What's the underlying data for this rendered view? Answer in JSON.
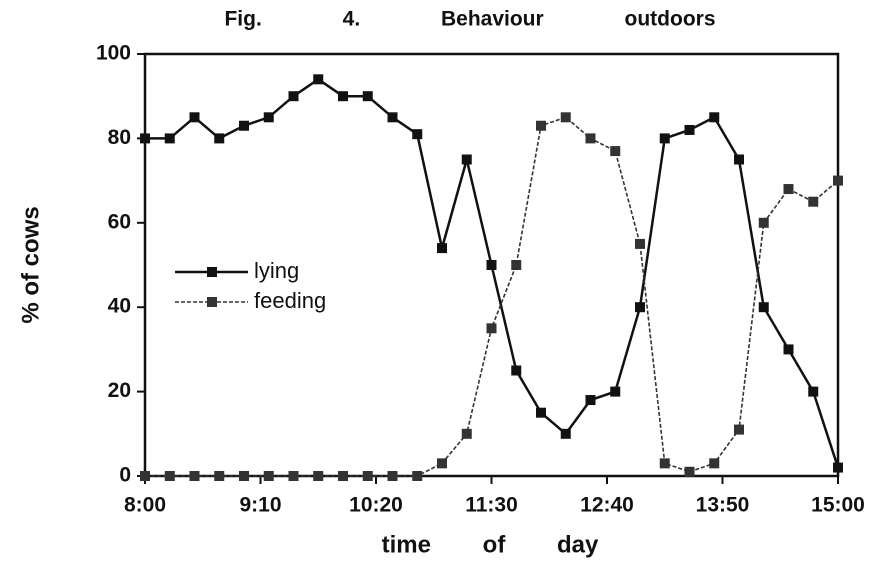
{
  "chart_data": {
    "type": "line",
    "title": "Fig. 4. Behaviour outdoors",
    "x_label": "time of day",
    "y_label": "% of cows",
    "x": [
      480,
      495,
      510,
      525,
      540,
      555,
      570,
      585,
      600,
      615,
      630,
      645,
      660,
      675,
      690,
      705,
      720,
      735,
      750,
      765,
      780,
      795,
      810,
      825,
      840,
      855,
      870,
      885,
      900
    ],
    "xlim": [
      480,
      900
    ],
    "xticks": [
      {
        "value": 480,
        "label": "8:00"
      },
      {
        "value": 550,
        "label": "9:10"
      },
      {
        "value": 620,
        "label": "10:20"
      },
      {
        "value": 690,
        "label": "11:30"
      },
      {
        "value": 760,
        "label": "12:40"
      },
      {
        "value": 830,
        "label": "13:50"
      },
      {
        "value": 900,
        "label": "15:00"
      }
    ],
    "ylim": [
      0,
      100
    ],
    "yticks": [
      0,
      20,
      40,
      60,
      80,
      100
    ],
    "legend": "left",
    "series": [
      {
        "name": "lying",
        "color": "#111111",
        "dash": false,
        "values": [
          80,
          80,
          85,
          80,
          83,
          85,
          90,
          94,
          90,
          90,
          85,
          81,
          54,
          75,
          50,
          25,
          15,
          10,
          18,
          20,
          40,
          80,
          82,
          85,
          75,
          40,
          30,
          20,
          2
        ]
      },
      {
        "name": "feeding",
        "color": "#333333",
        "dash": true,
        "values": [
          0,
          0,
          0,
          0,
          0,
          0,
          0,
          0,
          0,
          0,
          0,
          0,
          3,
          10,
          35,
          50,
          83,
          85,
          80,
          77,
          55,
          3,
          1,
          3,
          11,
          60,
          68,
          65,
          70
        ]
      }
    ]
  }
}
